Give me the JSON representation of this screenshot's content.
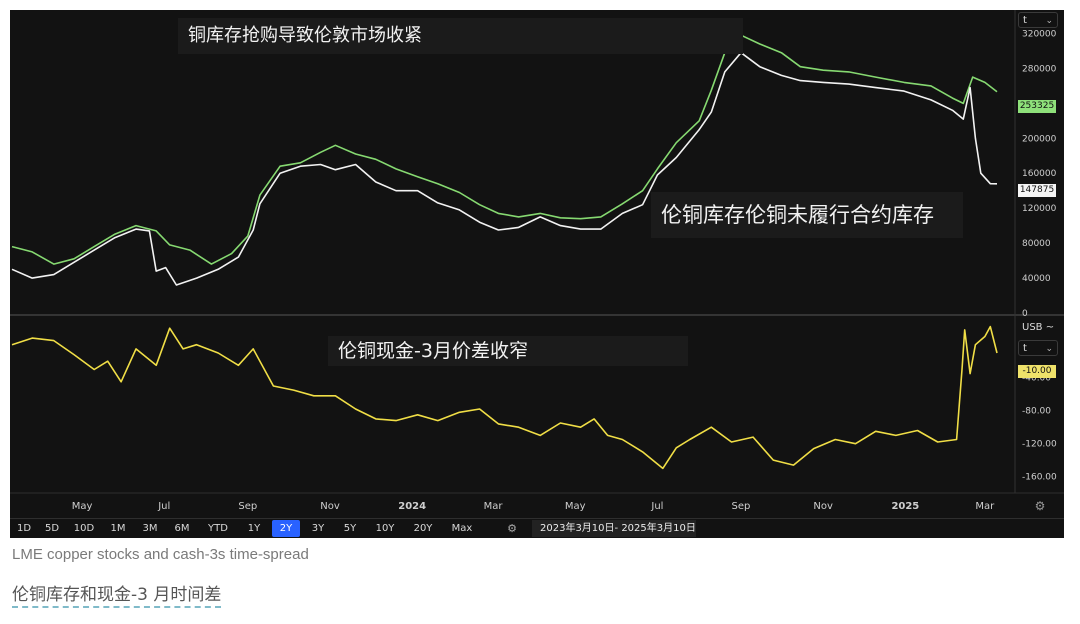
{
  "annotations": {
    "top_title": "铜库存抢购导致伦敦市场收紧",
    "stocks_label": "伦铜库存伦铜未履行合约库存",
    "spread_label": "伦铜现金-3月价差收窄"
  },
  "axis_controls": {
    "unit_top": "t",
    "currency": "USB ~",
    "unit_bottom": "t",
    "chevron": "⌄"
  },
  "value_tags": {
    "green": "253325",
    "white": "147875",
    "yellow": "-10.00"
  },
  "colors": {
    "stocks_green": "#86d971",
    "cancelled_white": "#f2f2f2",
    "spread_yellow": "#f0de46",
    "active_tab": "#2962ff",
    "background": "#121212"
  },
  "timeframe": {
    "buttons": [
      "1D",
      "5D",
      "10D",
      "1M",
      "3M",
      "6M",
      "YTD",
      "1Y",
      "2Y",
      "3Y",
      "5Y",
      "10Y",
      "20Y",
      "Max"
    ],
    "active": "2Y",
    "settings_icon": "⚙",
    "date_range": "2023年3月10日- 2025年3月10日"
  },
  "axis_settings_icon": "⚙",
  "captions": {
    "english": "LME copper stocks and cash-3s time-spread",
    "chinese": "伦铜库存和现金-3 月时间差"
  },
  "chart_data": {
    "type": "line",
    "x_range": [
      "2023-03-10",
      "2025-03-10"
    ],
    "x_tick_labels": [
      {
        "label": "May",
        "date": "2023-05-01"
      },
      {
        "label": "Jul",
        "date": "2023-07-01"
      },
      {
        "label": "Sep",
        "date": "2023-09-01"
      },
      {
        "label": "Nov",
        "date": "2023-11-01"
      },
      {
        "label": "2024",
        "date": "2024-01-01",
        "bold": true
      },
      {
        "label": "Mar",
        "date": "2024-03-01"
      },
      {
        "label": "May",
        "date": "2024-05-01"
      },
      {
        "label": "Jul",
        "date": "2024-07-01"
      },
      {
        "label": "Sep",
        "date": "2024-09-01"
      },
      {
        "label": "Nov",
        "date": "2024-11-01"
      },
      {
        "label": "2025",
        "date": "2025-01-01",
        "bold": true
      },
      {
        "label": "Mar",
        "date": "2025-03-01"
      }
    ],
    "panels": [
      {
        "name": "stocks",
        "unit": "t",
        "ylim": [
          0,
          340000
        ],
        "y_ticks": [
          0,
          40000,
          80000,
          120000,
          160000,
          200000,
          240000,
          280000,
          320000
        ],
        "y_tick_labels": [
          "0",
          "40000",
          "80000",
          "120000",
          "160000",
          "200000",
          "240000",
          "280000",
          "320000"
        ],
        "series": [
          {
            "color_key": "stocks_green",
            "points": [
              [
                "2023-03-10",
                76000
              ],
              [
                "2023-03-25",
                70000
              ],
              [
                "2023-04-10",
                56000
              ],
              [
                "2023-04-25",
                62000
              ],
              [
                "2023-05-10",
                76000
              ],
              [
                "2023-05-25",
                90000
              ],
              [
                "2023-06-10",
                100000
              ],
              [
                "2023-06-25",
                94000
              ],
              [
                "2023-07-05",
                78000
              ],
              [
                "2023-07-20",
                72000
              ],
              [
                "2023-08-05",
                56000
              ],
              [
                "2023-08-20",
                68000
              ],
              [
                "2023-09-01",
                88000
              ],
              [
                "2023-09-10",
                135000
              ],
              [
                "2023-09-25",
                168000
              ],
              [
                "2023-10-10",
                172000
              ],
              [
                "2023-10-25",
                184000
              ],
              [
                "2023-11-05",
                192000
              ],
              [
                "2023-11-20",
                182000
              ],
              [
                "2023-12-05",
                176000
              ],
              [
                "2023-12-20",
                165000
              ],
              [
                "2024-01-05",
                156000
              ],
              [
                "2024-01-20",
                148000
              ],
              [
                "2024-02-05",
                138000
              ],
              [
                "2024-02-20",
                124000
              ],
              [
                "2024-03-05",
                114000
              ],
              [
                "2024-03-20",
                110000
              ],
              [
                "2024-04-05",
                114000
              ],
              [
                "2024-04-20",
                109000
              ],
              [
                "2024-05-05",
                108000
              ],
              [
                "2024-05-20",
                110000
              ],
              [
                "2024-06-05",
                125000
              ],
              [
                "2024-06-20",
                140000
              ],
              [
                "2024-07-01",
                165000
              ],
              [
                "2024-07-15",
                195000
              ],
              [
                "2024-08-01",
                220000
              ],
              [
                "2024-08-10",
                255000
              ],
              [
                "2024-08-20",
                298000
              ],
              [
                "2024-09-01",
                318000
              ],
              [
                "2024-09-15",
                308000
              ],
              [
                "2024-10-01",
                298000
              ],
              [
                "2024-10-15",
                282000
              ],
              [
                "2024-11-01",
                278000
              ],
              [
                "2024-11-20",
                276000
              ],
              [
                "2024-12-10",
                270000
              ],
              [
                "2024-12-31",
                264000
              ],
              [
                "2025-01-20",
                260000
              ],
              [
                "2025-02-05",
                246000
              ],
              [
                "2025-02-13",
                240000
              ],
              [
                "2025-02-20",
                270000
              ],
              [
                "2025-03-01",
                264000
              ],
              [
                "2025-03-10",
                253325
              ]
            ]
          },
          {
            "color_key": "cancelled_white",
            "points": [
              [
                "2023-03-10",
                50000
              ],
              [
                "2023-03-25",
                40000
              ],
              [
                "2023-04-10",
                44000
              ],
              [
                "2023-04-25",
                58000
              ],
              [
                "2023-05-10",
                72000
              ],
              [
                "2023-05-25",
                86000
              ],
              [
                "2023-06-10",
                96000
              ],
              [
                "2023-06-20",
                94000
              ],
              [
                "2023-06-25",
                48000
              ],
              [
                "2023-07-02",
                52000
              ],
              [
                "2023-07-10",
                32000
              ],
              [
                "2023-07-25",
                40000
              ],
              [
                "2023-08-10",
                50000
              ],
              [
                "2023-08-25",
                64000
              ],
              [
                "2023-09-05",
                95000
              ],
              [
                "2023-09-10",
                125000
              ],
              [
                "2023-09-25",
                160000
              ],
              [
                "2023-10-10",
                168000
              ],
              [
                "2023-10-25",
                170000
              ],
              [
                "2023-11-05",
                164000
              ],
              [
                "2023-11-20",
                170000
              ],
              [
                "2023-12-05",
                150000
              ],
              [
                "2023-12-20",
                140000
              ],
              [
                "2024-01-05",
                140000
              ],
              [
                "2024-01-20",
                126000
              ],
              [
                "2024-02-05",
                118000
              ],
              [
                "2024-02-20",
                104000
              ],
              [
                "2024-03-05",
                95000
              ],
              [
                "2024-03-20",
                98000
              ],
              [
                "2024-04-05",
                110000
              ],
              [
                "2024-04-20",
                100000
              ],
              [
                "2024-05-05",
                96000
              ],
              [
                "2024-05-20",
                96000
              ],
              [
                "2024-06-05",
                114000
              ],
              [
                "2024-06-20",
                124000
              ],
              [
                "2024-07-01",
                158000
              ],
              [
                "2024-07-15",
                178000
              ],
              [
                "2024-08-01",
                210000
              ],
              [
                "2024-08-10",
                230000
              ],
              [
                "2024-08-20",
                276000
              ],
              [
                "2024-09-01",
                298000
              ],
              [
                "2024-09-15",
                282000
              ],
              [
                "2024-10-01",
                272000
              ],
              [
                "2024-10-15",
                266000
              ],
              [
                "2024-11-01",
                264000
              ],
              [
                "2024-11-20",
                262000
              ],
              [
                "2024-12-10",
                258000
              ],
              [
                "2024-12-31",
                254000
              ],
              [
                "2025-01-20",
                244000
              ],
              [
                "2025-02-05",
                232000
              ],
              [
                "2025-02-13",
                222000
              ],
              [
                "2025-02-18",
                258000
              ],
              [
                "2025-02-22",
                200000
              ],
              [
                "2025-02-26",
                160000
              ],
              [
                "2025-03-05",
                148000
              ],
              [
                "2025-03-10",
                147875
              ]
            ]
          }
        ]
      },
      {
        "name": "cash-3s spread",
        "unit": "USD",
        "ylim": [
          -175,
          30
        ],
        "y_ticks": [
          -160,
          -120,
          -80,
          -40
        ],
        "y_tick_labels": [
          "-160.00",
          "-120.00",
          "-80.00",
          "-40.00"
        ],
        "series": [
          {
            "color_key": "spread_yellow",
            "points": [
              [
                "2023-03-10",
                0
              ],
              [
                "2023-03-25",
                8
              ],
              [
                "2023-04-10",
                5
              ],
              [
                "2023-04-25",
                -12
              ],
              [
                "2023-05-10",
                -30
              ],
              [
                "2023-05-20",
                -20
              ],
              [
                "2023-05-30",
                -45
              ],
              [
                "2023-06-10",
                -5
              ],
              [
                "2023-06-25",
                -25
              ],
              [
                "2023-07-05",
                20
              ],
              [
                "2023-07-15",
                -5
              ],
              [
                "2023-07-25",
                0
              ],
              [
                "2023-08-10",
                -10
              ],
              [
                "2023-08-25",
                -25
              ],
              [
                "2023-09-05",
                -5
              ],
              [
                "2023-09-20",
                -50
              ],
              [
                "2023-10-05",
                -55
              ],
              [
                "2023-10-20",
                -62
              ],
              [
                "2023-11-05",
                -62
              ],
              [
                "2023-11-20",
                -78
              ],
              [
                "2023-12-05",
                -90
              ],
              [
                "2023-12-20",
                -92
              ],
              [
                "2024-01-05",
                -85
              ],
              [
                "2024-01-20",
                -92
              ],
              [
                "2024-02-05",
                -82
              ],
              [
                "2024-02-20",
                -78
              ],
              [
                "2024-03-05",
                -96
              ],
              [
                "2024-03-20",
                -100
              ],
              [
                "2024-04-05",
                -110
              ],
              [
                "2024-04-20",
                -95
              ],
              [
                "2024-05-05",
                -100
              ],
              [
                "2024-05-15",
                -90
              ],
              [
                "2024-05-25",
                -110
              ],
              [
                "2024-06-05",
                -115
              ],
              [
                "2024-06-20",
                -130
              ],
              [
                "2024-07-05",
                -150
              ],
              [
                "2024-07-15",
                -125
              ],
              [
                "2024-07-25",
                -115
              ],
              [
                "2024-08-10",
                -100
              ],
              [
                "2024-08-25",
                -118
              ],
              [
                "2024-09-10",
                -112
              ],
              [
                "2024-09-25",
                -140
              ],
              [
                "2024-10-10",
                -146
              ],
              [
                "2024-10-25",
                -126
              ],
              [
                "2024-11-10",
                -115
              ],
              [
                "2024-11-25",
                -120
              ],
              [
                "2024-12-10",
                -105
              ],
              [
                "2024-12-25",
                -110
              ],
              [
                "2025-01-10",
                -104
              ],
              [
                "2025-01-25",
                -118
              ],
              [
                "2025-02-08",
                -115
              ],
              [
                "2025-02-12",
                -30
              ],
              [
                "2025-02-14",
                18
              ],
              [
                "2025-02-18",
                -35
              ],
              [
                "2025-02-22",
                0
              ],
              [
                "2025-03-01",
                10
              ],
              [
                "2025-03-05",
                22
              ],
              [
                "2025-03-10",
                -10
              ]
            ]
          }
        ]
      }
    ]
  }
}
